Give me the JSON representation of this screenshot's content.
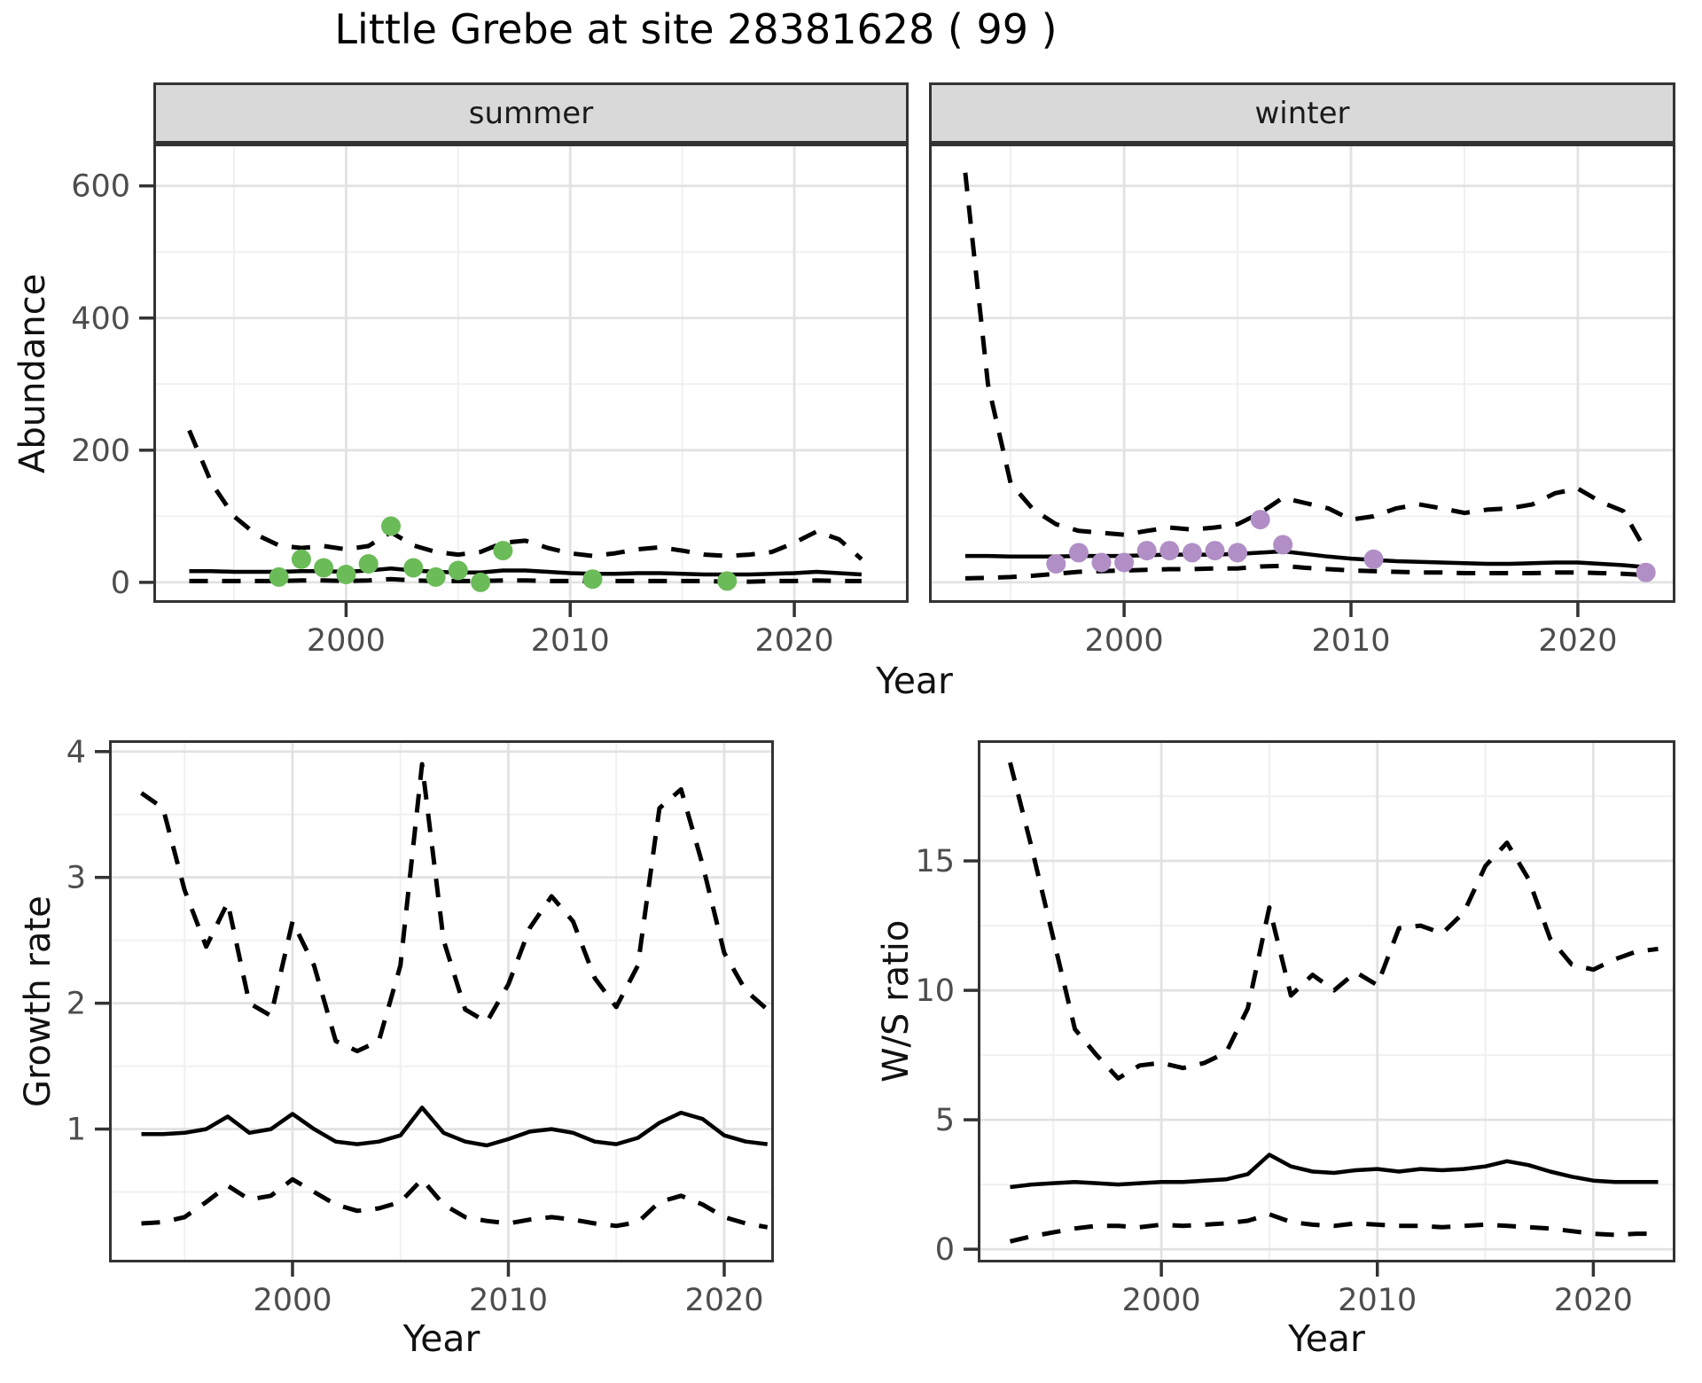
{
  "title": "Little Grebe at site 28381628 ( 99 )",
  "labels": {
    "y_top": "Abundance",
    "x_top": "Year",
    "y_growth": "Growth rate",
    "x_growth": "Year",
    "y_ws": "W/S ratio",
    "x_ws": "Year"
  },
  "facets": {
    "summer": "summer",
    "winter": "winter"
  },
  "colors": {
    "summer_points": "#6BBB59",
    "winter_points": "#B18FC6",
    "fit_line": "#000000",
    "ci_line": "#000000",
    "grid_major": "#e2e2e2",
    "grid_minor": "#f0f0f0",
    "panel_border": "#333333",
    "strip_bg": "#d9d9d9",
    "tick_text": "#4d4d4d",
    "title_text": "#000000"
  },
  "chart_data": [
    {
      "id": "summer",
      "type": "line",
      "facet_label": "summer",
      "xlabel": "Year",
      "ylabel": "Abundance",
      "grid": true,
      "legend_position": "none",
      "xlim": [
        1991.4,
        2025.1
      ],
      "ylim": [
        -31,
        664
      ],
      "x_ticks": [
        {
          "v": 2000,
          "label": "2000"
        },
        {
          "v": 2010,
          "label": "2010"
        },
        {
          "v": 2020,
          "label": "2020"
        }
      ],
      "x_minor": [
        1995,
        2005,
        2015,
        2025
      ],
      "y_ticks": [
        {
          "v": 0,
          "label": "0"
        },
        {
          "v": 200,
          "label": "200"
        },
        {
          "v": 400,
          "label": "400"
        },
        {
          "v": 600,
          "label": "600"
        }
      ],
      "y_minor": [
        100,
        300,
        500
      ],
      "show_y_ticks": true,
      "x": [
        1993,
        1994,
        1995,
        1996,
        1997,
        1998,
        1999,
        2000,
        2001,
        2002,
        2003,
        2004,
        2005,
        2006,
        2007,
        2008,
        2009,
        2010,
        2011,
        2012,
        2013,
        2014,
        2015,
        2016,
        2017,
        2018,
        2019,
        2020,
        2021,
        2022,
        2023
      ],
      "series": [
        {
          "name": "upper_ci",
          "style": "dashed",
          "values": [
            230,
            150,
            100,
            72,
            56,
            52,
            55,
            50,
            55,
            76,
            56,
            46,
            42,
            46,
            60,
            63,
            52,
            44,
            40,
            44,
            50,
            53,
            48,
            42,
            40,
            42,
            46,
            60,
            77,
            65,
            35
          ]
        },
        {
          "name": "fit",
          "style": "solid",
          "values": [
            17,
            17,
            16,
            16,
            16,
            17,
            17,
            16,
            18,
            21,
            18,
            16,
            15,
            15,
            18,
            18,
            16,
            14,
            13,
            13,
            14,
            14,
            13,
            12,
            12,
            12,
            13,
            14,
            16,
            14,
            12
          ]
        },
        {
          "name": "lower_ci",
          "style": "dashed",
          "values": [
            2,
            2,
            2,
            2,
            2,
            3,
            3,
            2,
            3,
            5,
            3,
            2,
            2,
            2,
            3,
            3,
            2,
            2,
            2,
            2,
            2,
            2,
            2,
            2,
            1,
            1,
            2,
            2,
            3,
            2,
            2
          ]
        }
      ],
      "points": {
        "name": "observed-summer-counts",
        "color_key": "summer_points",
        "x": [
          1997,
          1998,
          1999,
          2000,
          2001,
          2002,
          2003,
          2004,
          2005,
          2006,
          2007,
          2011,
          2017
        ],
        "y": [
          8,
          35,
          22,
          12,
          28,
          85,
          22,
          8,
          18,
          0,
          48,
          5,
          2
        ]
      }
    },
    {
      "id": "winter",
      "type": "line",
      "facet_label": "winter",
      "xlabel": "Year",
      "ylabel": "Abundance",
      "grid": true,
      "legend_position": "none",
      "xlim": [
        1991.4,
        2024.3
      ],
      "ylim": [
        -31,
        664
      ],
      "x_ticks": [
        {
          "v": 2000,
          "label": "2000"
        },
        {
          "v": 2010,
          "label": "2010"
        },
        {
          "v": 2020,
          "label": "2020"
        }
      ],
      "x_minor": [
        1995,
        2005,
        2015
      ],
      "y_ticks": [
        {
          "v": 0,
          "label": "0"
        },
        {
          "v": 200,
          "label": "200"
        },
        {
          "v": 400,
          "label": "400"
        },
        {
          "v": 600,
          "label": "600"
        }
      ],
      "y_minor": [
        100,
        300,
        500
      ],
      "show_y_ticks": false,
      "x": [
        1993,
        1994,
        1995,
        1996,
        1997,
        1998,
        1999,
        2000,
        2001,
        2002,
        2003,
        2004,
        2005,
        2006,
        2007,
        2008,
        2009,
        2010,
        2011,
        2012,
        2013,
        2014,
        2015,
        2016,
        2017,
        2018,
        2019,
        2020,
        2021,
        2022,
        2023
      ],
      "series": [
        {
          "name": "upper_ci",
          "style": "dashed",
          "values": [
            620,
            300,
            150,
            110,
            88,
            78,
            75,
            72,
            78,
            83,
            80,
            83,
            88,
            105,
            128,
            120,
            112,
            95,
            100,
            112,
            118,
            112,
            105,
            110,
            112,
            118,
            135,
            142,
            122,
            108,
            48
          ]
        },
        {
          "name": "fit",
          "style": "solid",
          "values": [
            40,
            40,
            39,
            39,
            39,
            40,
            40,
            40,
            41,
            42,
            42,
            42,
            43,
            45,
            47,
            43,
            39,
            36,
            34,
            32,
            31,
            30,
            29,
            28,
            28,
            29,
            30,
            30,
            28,
            26,
            23
          ]
        },
        {
          "name": "lower_ci",
          "style": "dashed",
          "values": [
            6,
            7,
            8,
            10,
            13,
            16,
            17,
            18,
            19,
            20,
            20,
            21,
            21,
            24,
            25,
            22,
            20,
            18,
            17,
            16,
            15,
            15,
            14,
            14,
            14,
            14,
            15,
            15,
            14,
            13,
            11
          ]
        }
      ],
      "points": {
        "name": "observed-winter-counts",
        "color_key": "winter_points",
        "x": [
          1997,
          1998,
          1999,
          2000,
          2001,
          2002,
          2003,
          2004,
          2005,
          2006,
          2007,
          2011,
          2023
        ],
        "y": [
          28,
          45,
          30,
          30,
          48,
          48,
          45,
          48,
          45,
          95,
          57,
          35,
          15
        ]
      }
    },
    {
      "id": "growth",
      "type": "line",
      "facet_label": "",
      "xlabel": "Year",
      "ylabel": "Growth rate",
      "grid": true,
      "legend_position": "none",
      "xlim": [
        1991.5,
        2022.3
      ],
      "ylim": [
        -0.06,
        4.09
      ],
      "x_ticks": [
        {
          "v": 2000,
          "label": "2000"
        },
        {
          "v": 2010,
          "label": "2010"
        },
        {
          "v": 2020,
          "label": "2020"
        }
      ],
      "x_minor": [
        1995,
        2005,
        2015
      ],
      "y_ticks": [
        {
          "v": 1,
          "label": "1"
        },
        {
          "v": 2,
          "label": "2"
        },
        {
          "v": 3,
          "label": "3"
        },
        {
          "v": 4,
          "label": "4"
        }
      ],
      "y_minor": [
        0.5,
        1.5,
        2.5,
        3.5
      ],
      "show_y_ticks": true,
      "x": [
        1993,
        1994,
        1995,
        1996,
        1997,
        1998,
        1999,
        2000,
        2001,
        2002,
        2003,
        2004,
        2005,
        2006,
        2007,
        2008,
        2009,
        2010,
        2011,
        2012,
        2013,
        2014,
        2015,
        2016,
        2017,
        2018,
        2019,
        2020,
        2021,
        2022
      ],
      "series": [
        {
          "name": "upper_ci",
          "style": "dashed",
          "values": [
            3.67,
            3.55,
            2.9,
            2.45,
            2.8,
            2.0,
            1.9,
            2.65,
            2.3,
            1.7,
            1.62,
            1.7,
            2.3,
            3.9,
            2.5,
            1.95,
            1.85,
            2.15,
            2.6,
            2.85,
            2.65,
            2.2,
            1.97,
            2.3,
            3.55,
            3.7,
            3.1,
            2.4,
            2.1,
            1.95
          ]
        },
        {
          "name": "fit",
          "style": "solid",
          "values": [
            0.96,
            0.96,
            0.97,
            1.0,
            1.1,
            0.97,
            1.0,
            1.12,
            1.0,
            0.9,
            0.88,
            0.9,
            0.95,
            1.17,
            0.97,
            0.9,
            0.87,
            0.92,
            0.98,
            1.0,
            0.97,
            0.9,
            0.88,
            0.93,
            1.05,
            1.13,
            1.08,
            0.95,
            0.9,
            0.88
          ]
        },
        {
          "name": "lower_ci",
          "style": "dashed",
          "values": [
            0.25,
            0.26,
            0.3,
            0.42,
            0.55,
            0.44,
            0.47,
            0.6,
            0.5,
            0.4,
            0.35,
            0.37,
            0.42,
            0.6,
            0.4,
            0.3,
            0.27,
            0.25,
            0.28,
            0.3,
            0.28,
            0.25,
            0.23,
            0.26,
            0.42,
            0.47,
            0.4,
            0.3,
            0.25,
            0.22
          ]
        }
      ],
      "points": null
    },
    {
      "id": "ws",
      "type": "line",
      "facet_label": "",
      "xlabel": "Year",
      "ylabel": "W/S ratio",
      "grid": true,
      "legend_position": "none",
      "xlim": [
        1991.5,
        2023.8
      ],
      "ylim": [
        -0.51,
        19.66
      ],
      "x_ticks": [
        {
          "v": 2000,
          "label": "2000"
        },
        {
          "v": 2010,
          "label": "2010"
        },
        {
          "v": 2020,
          "label": "2020"
        }
      ],
      "x_minor": [
        1995,
        2005,
        2015
      ],
      "y_ticks": [
        {
          "v": 0,
          "label": "0"
        },
        {
          "v": 5,
          "label": "5"
        },
        {
          "v": 10,
          "label": "10"
        },
        {
          "v": 15,
          "label": "15"
        }
      ],
      "y_minor": [
        2.5,
        7.5,
        12.5,
        17.5
      ],
      "show_y_ticks": true,
      "x": [
        1993,
        1994,
        1995,
        1996,
        1997,
        1998,
        1999,
        2000,
        2001,
        2002,
        2003,
        2004,
        2005,
        2006,
        2007,
        2008,
        2009,
        2010,
        2011,
        2012,
        2013,
        2014,
        2015,
        2016,
        2017,
        2018,
        2019,
        2020,
        2021,
        2022,
        2023
      ],
      "series": [
        {
          "name": "upper_ci",
          "style": "dashed",
          "values": [
            18.8,
            15.5,
            12.0,
            8.5,
            7.5,
            6.6,
            7.1,
            7.2,
            7.0,
            7.2,
            7.6,
            9.3,
            13.2,
            9.8,
            10.6,
            10.0,
            10.7,
            10.2,
            12.4,
            12.5,
            12.2,
            13.0,
            14.8,
            15.7,
            14.3,
            12.0,
            11.0,
            10.8,
            11.2,
            11.5,
            11.6
          ]
        },
        {
          "name": "fit",
          "style": "solid",
          "values": [
            2.4,
            2.5,
            2.55,
            2.6,
            2.55,
            2.5,
            2.55,
            2.6,
            2.6,
            2.65,
            2.7,
            2.9,
            3.65,
            3.2,
            3.0,
            2.95,
            3.05,
            3.1,
            3.0,
            3.1,
            3.05,
            3.1,
            3.2,
            3.4,
            3.25,
            3.0,
            2.8,
            2.65,
            2.6,
            2.6,
            2.6
          ]
        },
        {
          "name": "lower_ci",
          "style": "dashed",
          "values": [
            0.3,
            0.5,
            0.65,
            0.8,
            0.9,
            0.9,
            0.85,
            0.95,
            0.9,
            0.95,
            1.0,
            1.1,
            1.35,
            1.05,
            0.95,
            0.9,
            1.0,
            0.95,
            0.9,
            0.9,
            0.85,
            0.9,
            0.95,
            0.9,
            0.85,
            0.8,
            0.7,
            0.6,
            0.55,
            0.6,
            0.6
          ]
        }
      ],
      "points": null
    }
  ]
}
